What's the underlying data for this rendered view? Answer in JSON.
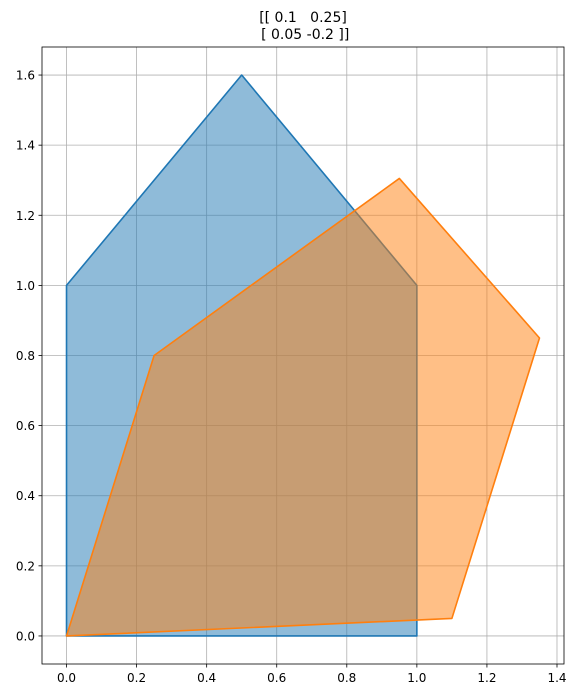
{
  "chart_data": {
    "type": "area",
    "title_lines": [
      "[[ 0.1   0.25]",
      " [ 0.05 -0.2 ]]"
    ],
    "xlabel": "",
    "ylabel": "",
    "xlim": [
      -0.07,
      1.42
    ],
    "ylim": [
      -0.08,
      1.68
    ],
    "xticks": [
      0.0,
      0.2,
      0.4,
      0.6,
      0.8,
      1.0,
      1.2,
      1.4
    ],
    "xtick_labels": [
      "0.0",
      "0.2",
      "0.4",
      "0.6",
      "0.8",
      "1.0",
      "1.2",
      "1.4"
    ],
    "yticks": [
      0.0,
      0.2,
      0.4,
      0.6,
      0.8,
      1.0,
      1.2,
      1.4,
      1.6
    ],
    "ytick_labels": [
      "0.0",
      "0.2",
      "0.4",
      "0.6",
      "0.8",
      "1.0",
      "1.2",
      "1.4",
      "1.6"
    ],
    "grid": true,
    "series": [
      {
        "color": "#1f77b4",
        "points": [
          [
            0.0,
            0.0
          ],
          [
            1.0,
            0.0
          ],
          [
            1.0,
            1.0
          ],
          [
            0.5,
            1.6
          ],
          [
            0.0,
            1.0
          ]
        ]
      },
      {
        "color": "#ff7f0e",
        "points": [
          [
            0.0,
            0.0
          ],
          [
            1.1,
            0.05
          ],
          [
            1.35,
            0.85
          ],
          [
            0.95,
            1.305
          ],
          [
            0.25,
            0.8
          ]
        ]
      }
    ]
  }
}
